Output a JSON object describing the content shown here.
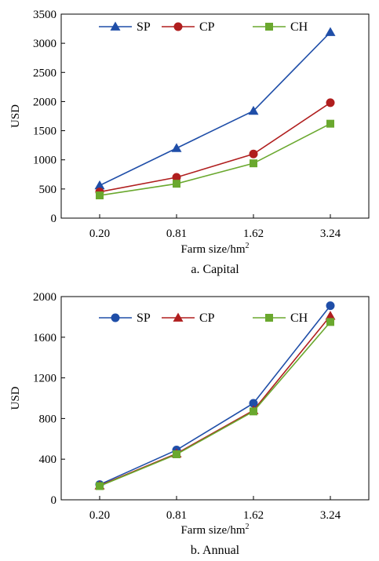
{
  "chart_data": [
    {
      "type": "line",
      "caption": "a. Capital",
      "categories": [
        "0.20",
        "0.81",
        "1.62",
        "3.24"
      ],
      "xlabel": "Farm size/hm",
      "xlabel_sup": "2",
      "ylabel": "USD",
      "ylim": [
        0,
        3500
      ],
      "yticks": [
        0,
        500,
        1000,
        1500,
        2000,
        2500,
        3000,
        3500
      ],
      "grid": false,
      "legend_position": "top",
      "series": [
        {
          "name": "SP",
          "color": "#1f4ea8",
          "marker": "triangle",
          "values": [
            560,
            1200,
            1840,
            3190
          ]
        },
        {
          "name": "CP",
          "color": "#b01e1e",
          "marker": "circle",
          "values": [
            450,
            700,
            1100,
            1980
          ]
        },
        {
          "name": "CH",
          "color": "#6aa82e",
          "marker": "square",
          "values": [
            390,
            590,
            940,
            1620
          ]
        }
      ]
    },
    {
      "type": "line",
      "caption": "b. Annual",
      "categories": [
        "0.20",
        "0.81",
        "1.62",
        "3.24"
      ],
      "xlabel": "Farm size/hm",
      "xlabel_sup": "2",
      "ylabel": "USD",
      "ylim": [
        0,
        2000
      ],
      "yticks": [
        0,
        400,
        800,
        1200,
        1600,
        2000
      ],
      "grid": false,
      "legend_position": "top",
      "series": [
        {
          "name": "SP",
          "color": "#1f4ea8",
          "marker": "circle",
          "values": [
            150,
            490,
            950,
            1910
          ]
        },
        {
          "name": "CP",
          "color": "#b01e1e",
          "marker": "triangle",
          "values": [
            140,
            455,
            880,
            1810
          ]
        },
        {
          "name": "CH",
          "color": "#6aa82e",
          "marker": "square",
          "values": [
            135,
            448,
            870,
            1750
          ]
        }
      ]
    }
  ]
}
